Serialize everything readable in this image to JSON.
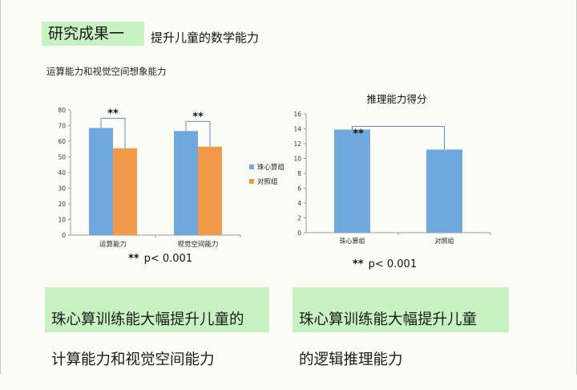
{
  "slide": {
    "title_box": "研究成果一",
    "title": "提升儿童的数学能力",
    "section_label": "运算能力和视觉空间想象能力"
  },
  "colors": {
    "blue": "#6fa8dc",
    "orange": "#f39a4a",
    "bracket": "#5b8fc9",
    "box": "#c9f2c2"
  },
  "chart_data": [
    {
      "type": "bar",
      "title": "",
      "categories": [
        "运算能力",
        "视觉空间能力"
      ],
      "series": [
        {
          "name": "珠心算组",
          "values": [
            68.5,
            66.5
          ]
        },
        {
          "name": "对照组",
          "values": [
            55.5,
            56.5
          ]
        }
      ],
      "ylim": [
        0,
        80
      ],
      "yticks": [
        0,
        10,
        20,
        30,
        40,
        50,
        60,
        70,
        80
      ],
      "legend": "right",
      "annotations": [
        "**",
        "**"
      ],
      "grid": false
    },
    {
      "type": "bar",
      "title": "推理能力得分",
      "categories": [
        "珠心算组",
        "对照组"
      ],
      "values": [
        13.9,
        11.2
      ],
      "ylim": [
        0,
        16
      ],
      "yticks": [
        0,
        2,
        4,
        6,
        8,
        10,
        12,
        14,
        16
      ],
      "annotations": [
        "**"
      ],
      "grid": false
    }
  ],
  "notes": {
    "left": {
      "stars": "**",
      "text": "p< 0.001"
    },
    "right": {
      "stars": "**",
      "text": "p< 0.001"
    }
  },
  "summaries": {
    "left": [
      "珠心算训练能大幅提升儿童的",
      "计算能力和视觉空间能力"
    ],
    "right": [
      "珠心算训练能大幅提升儿童",
      "的逻辑推理能力"
    ]
  }
}
